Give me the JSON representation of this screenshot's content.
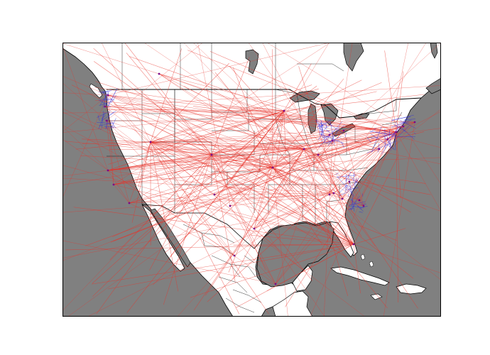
{
  "figure": {
    "background": "#ffffff",
    "water_color": "#808080",
    "land_color": "#ffffff",
    "border_color": "#000000",
    "frame_color": "#000000"
  },
  "map": {
    "region": "North America",
    "projection": "cylindrical",
    "extent_lon": [
      -125,
      -60
    ],
    "extent_lat": [
      15,
      52
    ]
  },
  "routes": {
    "long_haul_color": "#e8322a",
    "regional_color": "#2a2ae0",
    "hub_marker_color": "#7a0a8a"
  }
}
